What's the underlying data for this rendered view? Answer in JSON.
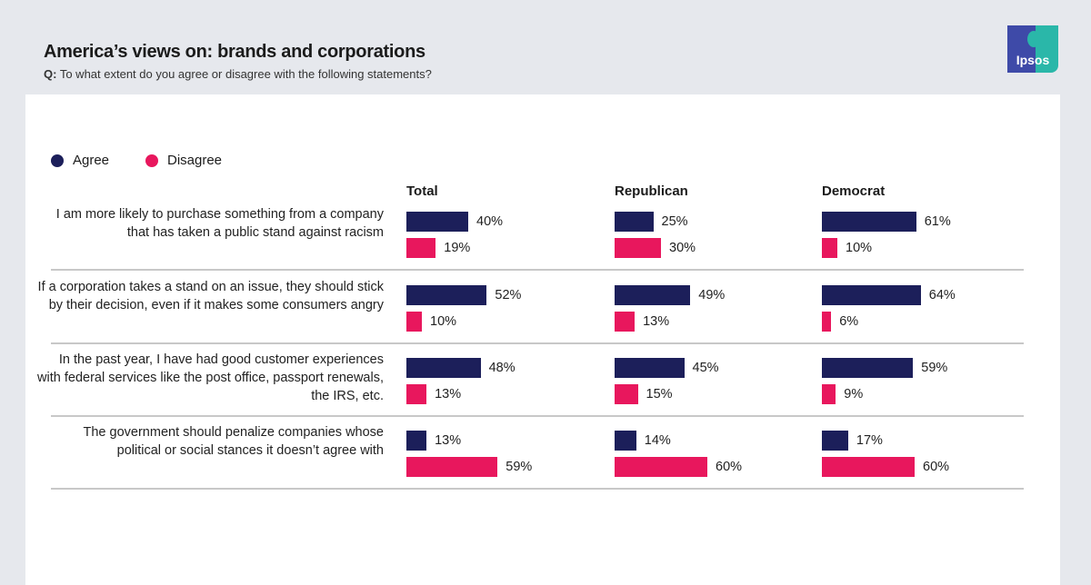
{
  "header": {
    "title": "America’s views on: brands and corporations",
    "q_prefix": "Q:",
    "question": "To what extent do you agree or disagree with the following statements?",
    "logo": "Ipsos"
  },
  "colors": {
    "agree": "#1c1f5a",
    "disagree": "#e8175d"
  },
  "chart_data": {
    "type": "bar",
    "orientation": "horizontal",
    "legend": {
      "placement": "top-left",
      "items": [
        "Agree",
        "Disagree"
      ]
    },
    "groups": [
      "Total",
      "Republican",
      "Democrat"
    ],
    "categories": [
      "I am more likely to purchase something from a company that has taken a public stand against racism",
      "If a corporation takes a stand on an issue, they should stick by their decision, even if it makes some consumers angry",
      "In the past year, I have had good customer experiences with federal services like the post office, passport renewals, the IRS, etc.",
      "The government should penalize companies whose political or social stances it doesn’t agree with"
    ],
    "series": [
      {
        "name": "Agree",
        "values": {
          "Total": [
            40,
            52,
            48,
            13
          ],
          "Republican": [
            25,
            49,
            45,
            14
          ],
          "Democrat": [
            61,
            64,
            59,
            17
          ]
        }
      },
      {
        "name": "Disagree",
        "values": {
          "Total": [
            19,
            10,
            13,
            59
          ],
          "Republican": [
            30,
            13,
            15,
            60
          ],
          "Democrat": [
            10,
            6,
            9,
            60
          ]
        }
      }
    ],
    "unit": "%"
  }
}
